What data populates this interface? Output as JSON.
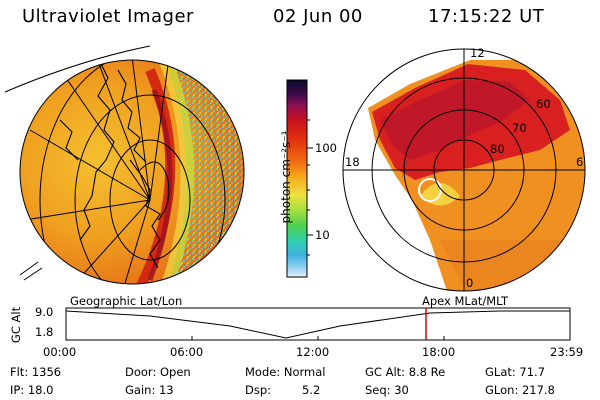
{
  "header": {
    "title": "Ultraviolet Imager",
    "date": "02 Jun 00",
    "time": "17:15:22 UT"
  },
  "colorbar": {
    "unit_label": "photon cm⁻²s⁻¹",
    "ticks": [
      "100",
      "10"
    ],
    "scale": "log",
    "colors": [
      "#0a0a2a",
      "#3a0a4a",
      "#8a1050",
      "#c81020",
      "#e03010",
      "#f07010",
      "#f5b020",
      "#f0e040",
      "#a8e040",
      "#50d050",
      "#30d0b0",
      "#40b0e0",
      "#90d0f0",
      "#e8f0f8"
    ]
  },
  "left_panel": {
    "label": "Geographic Lat/Lon"
  },
  "right_panel": {
    "label": "Apex MLat/MLT",
    "mlt_labels": [
      "12",
      "18",
      "6",
      "0"
    ],
    "mlat_labels": [
      "60",
      "70",
      "80"
    ]
  },
  "altitude_plot": {
    "ylabel": "GC Alt",
    "yticks": [
      "9.0",
      "1.8"
    ],
    "xticks": [
      "00:00",
      "06:00",
      "12:00",
      "18:00",
      "23:59"
    ],
    "marker_color": "#e00000"
  },
  "info": {
    "flt": "Flt: 1356",
    "ip": "IP: 18.0",
    "door": "Door: Open",
    "gain": "Gain: 13",
    "mode": "Mode: Normal",
    "dsp_label": "Dsp:",
    "dsp_value": "5.2",
    "gcalt": "GC Alt: 8.8 Re",
    "seq": "Seq: 30",
    "glat": "GLat: 71.7",
    "glon": "GLon: 217.8"
  }
}
